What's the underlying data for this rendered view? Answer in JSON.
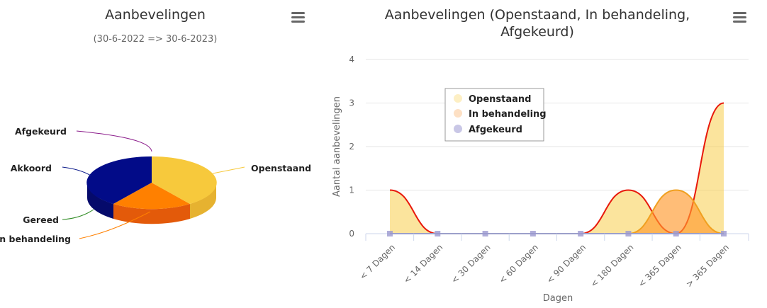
{
  "left_chart": {
    "title": "Aanbevelingen",
    "subtitle": "(30-6-2022 => 30-6-2023)",
    "menu_icon": "hamburger-menu-icon"
  },
  "right_chart": {
    "title_line1": "Aanbevelingen (Openstaand, In behandeling,",
    "title_line2": "Afgekeurd)",
    "menu_icon": "hamburger-menu-icon"
  },
  "chart_data": [
    {
      "type": "pie",
      "variant": "3d",
      "title": "Aanbevelingen",
      "subtitle": "(30-6-2022 => 30-6-2023)",
      "slices": [
        {
          "label": "Openstaand",
          "value": 3,
          "color": "#f7c93c"
        },
        {
          "label": "In behandeling",
          "value": 2,
          "color": "#ff8000"
        },
        {
          "label": "Gereed",
          "value": 0,
          "color": "#2e8b22"
        },
        {
          "label": "Akkoord",
          "value": 0,
          "color": "#0b1a8a"
        },
        {
          "label": "Afgekeurd",
          "value": 0,
          "color": "#8a1a8a"
        }
      ],
      "rendered_slices_note_free": true
    },
    {
      "type": "area",
      "title": "Aanbevelingen (Openstaand, In behandeling, Afgekeurd)",
      "xlabel": "Dagen",
      "ylabel": "Aantal aanbevelingen",
      "categories": [
        "< 7 Dagen",
        "< 14 Dagen",
        "< 30 Dagen",
        "< 60 Dagen",
        "< 90 Dagen",
        "< 180 Dagen",
        "< 365 Dagen",
        "> 365 Dagen"
      ],
      "ylim": [
        0,
        4
      ],
      "yticks": [
        0,
        1,
        2,
        3,
        4
      ],
      "grid": true,
      "legend_position": "top-left",
      "series": [
        {
          "name": "Openstaand",
          "values": [
            1,
            0,
            0,
            0,
            0,
            1,
            0,
            3
          ],
          "color": "#f7c93c",
          "line_color": "#e8190c"
        },
        {
          "name": "In behandeling",
          "values": [
            0,
            0,
            0,
            0,
            0,
            0,
            1,
            0
          ],
          "color": "#ff9a2e",
          "line_color": "#f0a020"
        },
        {
          "name": "Afgekeurd",
          "values": [
            0,
            0,
            0,
            0,
            0,
            0,
            0,
            0
          ],
          "color": "#8a88c9",
          "line_color": "#6c6aa8"
        }
      ]
    }
  ]
}
